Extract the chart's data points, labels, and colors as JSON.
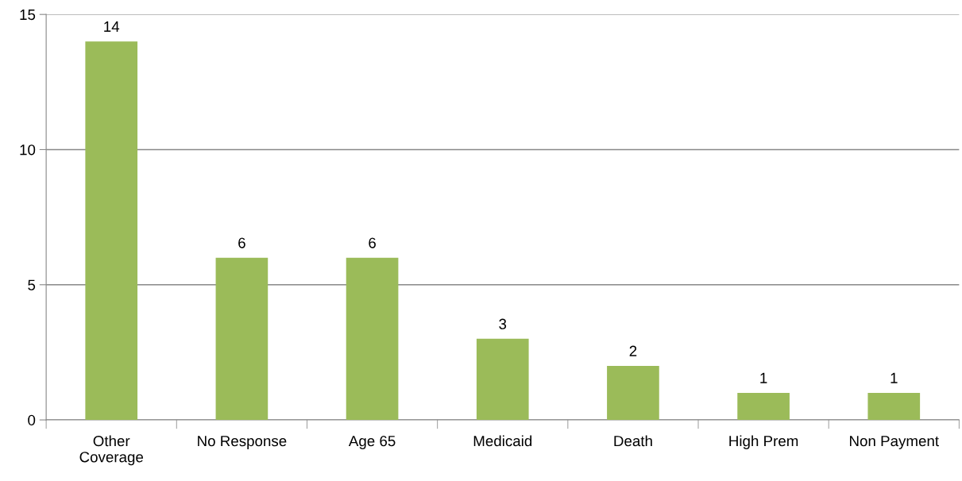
{
  "chart_data": {
    "type": "bar",
    "categories": [
      "Other\nCoverage",
      "No Response",
      "Age 65",
      "Medicaid",
      "Death",
      "High Prem",
      "Non Payment"
    ],
    "values": [
      14,
      6,
      6,
      3,
      2,
      1,
      1
    ],
    "color": "#9bbb59",
    "ylim": [
      0,
      15
    ],
    "yticks": [
      0,
      5,
      10,
      15
    ],
    "grid": "y",
    "data_labels": true,
    "legend": false
  }
}
